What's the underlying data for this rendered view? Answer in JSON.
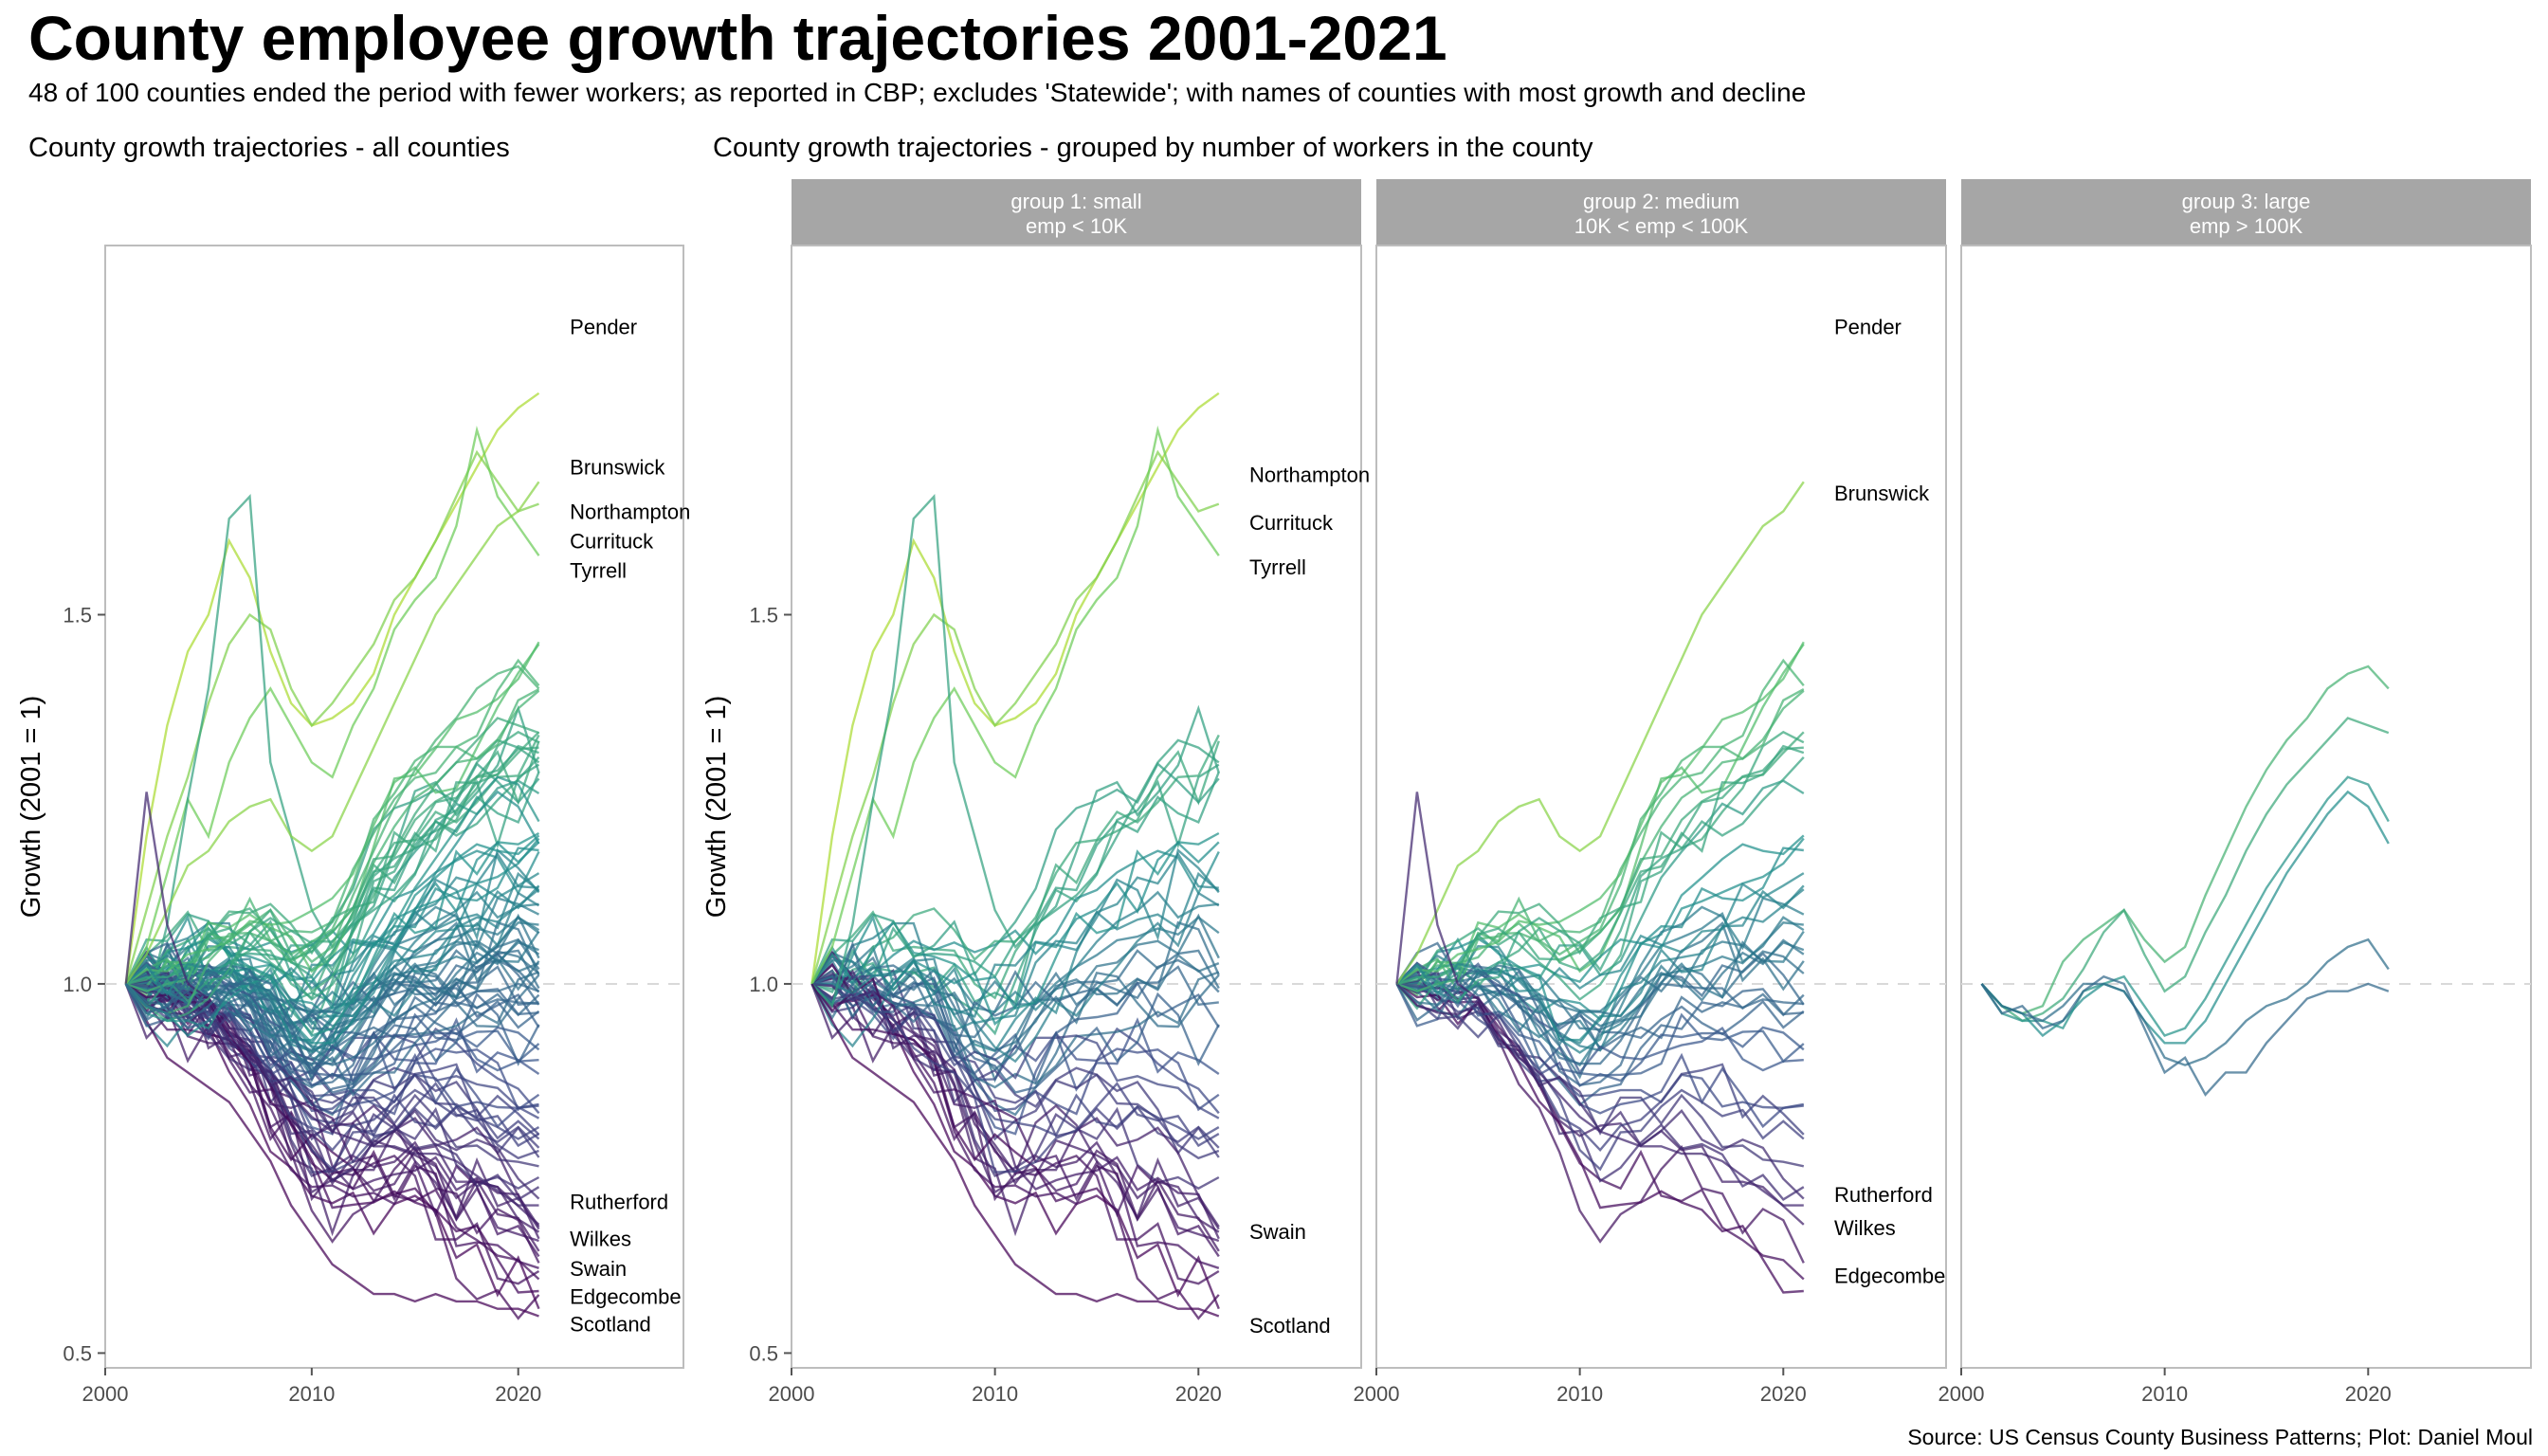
{
  "title": "County employee growth trajectories 2001-2021",
  "subtitle": "48 of 100 counties ended the period with fewer workers; as reported in CBP; excludes 'Statewide'; with names of counties with most growth and decline",
  "left_panel_title": "County growth trajectories - all counties",
  "right_panel_title": "County growth trajectories - grouped by number of workers in the county",
  "caption": "Source: US Census County Business Patterns; Plot: Daniel Moul",
  "colors": {
    "panel_border": "#bdbdbd",
    "strip_bg": "#a6a6a6",
    "strip_text": "#ffffff",
    "reference_line": "#d9d9d9",
    "palette": [
      "#440154",
      "#3b528b",
      "#21908c",
      "#5dc863",
      "#b8de29"
    ]
  },
  "chart_data": [
    {
      "type": "line",
      "panel": "all",
      "title": "County growth trajectories - all counties",
      "xlabel": "",
      "ylabel": "Growth (2001 = 1)",
      "xlim": [
        2000,
        2028
      ],
      "ylim": [
        0.48,
        2.0
      ],
      "x_ticks": [
        2000,
        2010,
        2020
      ],
      "y_ticks": [
        0.5,
        1.0,
        1.5
      ],
      "reference_line": 1.0,
      "grid": false,
      "labels": [
        {
          "name": "Pender",
          "value": 1.89
        },
        {
          "name": "Brunswick",
          "value": 1.7
        },
        {
          "name": "Northampton",
          "value": 1.64
        },
        {
          "name": "Currituck",
          "value": 1.6
        },
        {
          "name": "Tyrrell",
          "value": 1.56
        },
        {
          "name": "Rutherford",
          "value": 0.705
        },
        {
          "name": "Wilkes",
          "value": 0.655
        },
        {
          "name": "Swain",
          "value": 0.615
        },
        {
          "name": "Edgecombe",
          "value": 0.577
        },
        {
          "name": "Scotland",
          "value": 0.54
        }
      ]
    },
    {
      "type": "line",
      "panel": "group1",
      "strip": [
        "group 1: small",
        "emp < 10K"
      ],
      "xlabel": "",
      "ylabel": "Growth (2001 = 1)",
      "xlim": [
        2000,
        2028
      ],
      "ylim": [
        0.48,
        2.0
      ],
      "x_ticks": [
        2000,
        2010,
        2020
      ],
      "y_ticks": [
        0.5,
        1.0,
        1.5
      ],
      "reference_line": 1.0,
      "labels": [
        {
          "name": "Northampton",
          "value": 1.69
        },
        {
          "name": "Currituck",
          "value": 1.625
        },
        {
          "name": "Tyrrell",
          "value": 1.565
        },
        {
          "name": "Swain",
          "value": 0.665
        },
        {
          "name": "Scotland",
          "value": 0.538
        }
      ]
    },
    {
      "type": "line",
      "panel": "group2",
      "strip": [
        "group 2: medium",
        "10K < emp < 100K"
      ],
      "xlim": [
        2000,
        2028
      ],
      "ylim": [
        0.48,
        2.0
      ],
      "x_ticks": [
        2000,
        2010,
        2020
      ],
      "reference_line": 1.0,
      "labels": [
        {
          "name": "Pender",
          "value": 1.89
        },
        {
          "name": "Brunswick",
          "value": 1.665
        },
        {
          "name": "Rutherford",
          "value": 0.715
        },
        {
          "name": "Wilkes",
          "value": 0.67
        },
        {
          "name": "Edgecombe",
          "value": 0.605
        }
      ]
    },
    {
      "type": "line",
      "panel": "group3",
      "strip": [
        "group 3: large",
        "emp > 100K"
      ],
      "xlim": [
        2000,
        2028
      ],
      "ylim": [
        0.48,
        2.0
      ],
      "x_ticks": [
        2000,
        2010,
        2020
      ],
      "reference_line": 1.0,
      "series": [
        {
          "x": [
            2001,
            2002,
            2003,
            2004,
            2005,
            2006,
            2007,
            2008,
            2009,
            2010,
            2011,
            2012,
            2013,
            2014,
            2015,
            2016,
            2017,
            2018,
            2019,
            2020,
            2021
          ],
          "values": [
            1.0,
            0.97,
            0.96,
            0.97,
            1.03,
            1.06,
            1.08,
            1.1,
            1.06,
            1.03,
            1.05,
            1.12,
            1.18,
            1.24,
            1.29,
            1.33,
            1.36,
            1.4,
            1.42,
            1.43,
            1.4
          ]
        },
        {
          "x": [
            2001,
            2002,
            2003,
            2004,
            2005,
            2006,
            2007,
            2008,
            2009,
            2010,
            2011,
            2012,
            2013,
            2014,
            2015,
            2016,
            2017,
            2018,
            2019,
            2020,
            2021
          ],
          "values": [
            1.0,
            0.97,
            0.95,
            0.96,
            0.98,
            1.02,
            1.07,
            1.1,
            1.04,
            0.99,
            1.01,
            1.07,
            1.12,
            1.18,
            1.23,
            1.27,
            1.3,
            1.33,
            1.36,
            1.35,
            1.34
          ]
        },
        {
          "x": [
            2001,
            2002,
            2003,
            2004,
            2005,
            2006,
            2007,
            2008,
            2009,
            2010,
            2011,
            2012,
            2013,
            2014,
            2015,
            2016,
            2017,
            2018,
            2019,
            2020,
            2021
          ],
          "values": [
            1.0,
            0.96,
            0.95,
            0.95,
            0.94,
            0.99,
            1.0,
            1.01,
            0.97,
            0.93,
            0.94,
            0.98,
            1.03,
            1.08,
            1.13,
            1.17,
            1.21,
            1.25,
            1.28,
            1.27,
            1.22
          ]
        },
        {
          "x": [
            2001,
            2002,
            2003,
            2004,
            2005,
            2006,
            2007,
            2008,
            2009,
            2010,
            2011,
            2012,
            2013,
            2014,
            2015,
            2016,
            2017,
            2018,
            2019,
            2020,
            2021
          ],
          "values": [
            1.0,
            0.97,
            0.96,
            0.93,
            0.95,
            0.98,
            1.0,
            0.99,
            0.95,
            0.92,
            0.92,
            0.95,
            1.0,
            1.05,
            1.1,
            1.15,
            1.19,
            1.23,
            1.26,
            1.24,
            1.19
          ]
        },
        {
          "x": [
            2001,
            2002,
            2003,
            2004,
            2005,
            2006,
            2007,
            2008,
            2009,
            2010,
            2011,
            2012,
            2013,
            2014,
            2015,
            2016,
            2017,
            2018,
            2019,
            2020,
            2021
          ],
          "values": [
            1.0,
            0.97,
            0.96,
            0.95,
            0.97,
            1.0,
            1.0,
            0.99,
            0.95,
            0.9,
            0.89,
            0.9,
            0.92,
            0.95,
            0.97,
            0.98,
            1.0,
            1.03,
            1.05,
            1.06,
            1.02
          ]
        },
        {
          "x": [
            2001,
            2002,
            2003,
            2004,
            2005,
            2006,
            2007,
            2008,
            2009,
            2010,
            2011,
            2012,
            2013,
            2014,
            2015,
            2016,
            2017,
            2018,
            2019,
            2020,
            2021
          ],
          "values": [
            1.0,
            0.96,
            0.97,
            0.94,
            0.95,
            0.99,
            1.01,
            1.0,
            0.94,
            0.88,
            0.9,
            0.85,
            0.88,
            0.88,
            0.92,
            0.95,
            0.98,
            0.99,
            0.99,
            1.0,
            0.99
          ]
        }
      ],
      "labels": []
    }
  ]
}
